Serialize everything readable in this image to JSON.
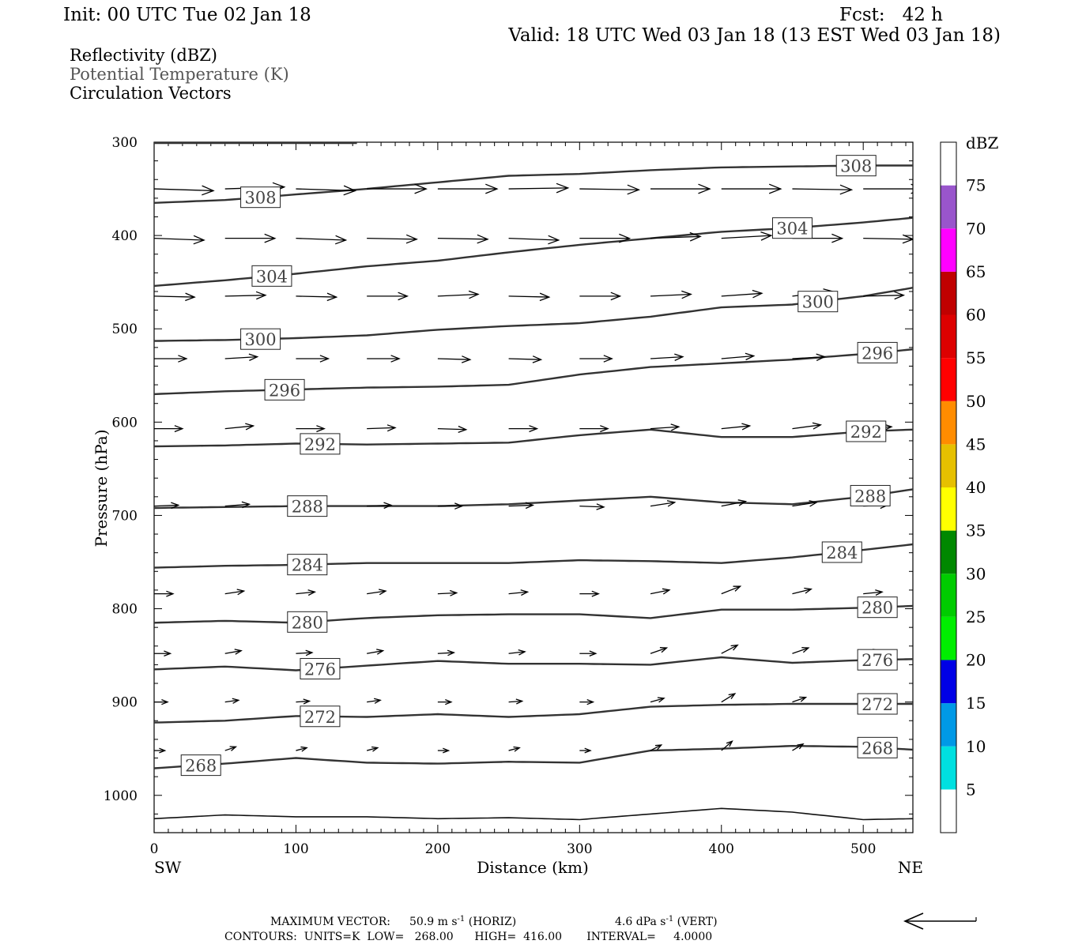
{
  "header": {
    "init": "Init: 00 UTC Tue 02 Jan 18",
    "fcst": "Fcst:   42 h",
    "valid": "Valid: 18 UTC Wed 03 Jan 18 (13 EST Wed 03 Jan 18)"
  },
  "fields": {
    "reflectivity": "Reflectivity (dBZ)",
    "theta": "Potential Temperature (K)",
    "vectors": "Circulation Vectors"
  },
  "colors": {
    "theta_label": "#555555",
    "contour": "#333333"
  },
  "chart_data": {
    "type": "line",
    "xlabel": "Distance (km)",
    "ylabel": "Pressure (hPa)",
    "xlim": [
      0,
      535
    ],
    "ylim": [
      1040,
      300
    ],
    "x_ticks": [
      0,
      100,
      200,
      300,
      400,
      500
    ],
    "y_ticks": [
      300,
      400,
      500,
      600,
      700,
      800,
      900,
      1000
    ],
    "x_endpoints": {
      "left": "SW",
      "right": "NE"
    },
    "contour_x": [
      0,
      50,
      100,
      150,
      200,
      250,
      300,
      350,
      400,
      450,
      500,
      535
    ],
    "contours": [
      {
        "label": "308",
        "p": [
          365,
          362,
          356,
          350,
          343,
          336,
          334,
          330,
          327,
          326,
          325,
          325
        ],
        "labels_at": [
          75,
          495
        ]
      },
      {
        "label": "304",
        "p": [
          454,
          448,
          441,
          433,
          427,
          418,
          410,
          403,
          396,
          392,
          386,
          381
        ],
        "labels_at": [
          83,
          450
        ]
      },
      {
        "label": "300",
        "p": [
          513,
          512,
          510,
          507,
          501,
          497,
          494,
          487,
          477,
          474,
          465,
          456
        ],
        "labels_at": [
          75,
          468
        ]
      },
      {
        "label": "296",
        "p": [
          570,
          567,
          565,
          563,
          562,
          560,
          549,
          541,
          537,
          533,
          527,
          522
        ],
        "labels_at": [
          92,
          510
        ]
      },
      {
        "label": "292",
        "p": [
          626,
          625,
          623,
          624,
          623,
          622,
          614,
          608,
          616,
          616,
          610,
          608
        ],
        "labels_at": [
          117,
          502
        ]
      },
      {
        "label": "288",
        "p": [
          692,
          691,
          690,
          690,
          690,
          688,
          684,
          680,
          686,
          688,
          680,
          672
        ],
        "labels_at": [
          108,
          505
        ]
      },
      {
        "label": "284",
        "p": [
          756,
          754,
          753,
          751,
          751,
          751,
          748,
          749,
          751,
          745,
          737,
          731
        ],
        "labels_at": [
          108,
          485
        ]
      },
      {
        "label": "280",
        "p": [
          815,
          813,
          815,
          810,
          807,
          806,
          806,
          810,
          801,
          801,
          799,
          797
        ],
        "labels_at": [
          108,
          510
        ]
      },
      {
        "label": "276",
        "p": [
          865,
          862,
          866,
          861,
          856,
          859,
          859,
          860,
          852,
          858,
          855,
          854
        ],
        "labels_at": [
          117,
          510
        ]
      },
      {
        "label": "272",
        "p": [
          922,
          920,
          915,
          916,
          913,
          916,
          913,
          905,
          903,
          902,
          902,
          902
        ],
        "labels_at": [
          117,
          510
        ]
      },
      {
        "label": "268",
        "p": [
          971,
          966,
          960,
          965,
          966,
          964,
          965,
          952,
          950,
          947,
          948,
          951
        ],
        "labels_at": [
          33,
          510
        ]
      }
    ],
    "surface": {
      "p": [
        1025,
        1021,
        1023,
        1023,
        1025,
        1024,
        1026,
        1020,
        1014,
        1018,
        1026,
        1025
      ]
    },
    "vectors": {
      "x": [
        0,
        50,
        100,
        150,
        200,
        250,
        300,
        350,
        400,
        450,
        500
      ],
      "rows": [
        {
          "p": 350,
          "len": 44,
          "dp": [
            2,
            -2,
            2,
            0,
            0,
            -1,
            1,
            0,
            0,
            1,
            0
          ]
        },
        {
          "p": 403,
          "len": 37,
          "dp": [
            2,
            0,
            2,
            1,
            1,
            2,
            0,
            -2,
            -3,
            0,
            1
          ]
        },
        {
          "p": 465,
          "len": 30,
          "dp": [
            1,
            -1,
            1,
            0,
            -2,
            1,
            0,
            -2,
            -3,
            -5,
            -1
          ]
        },
        {
          "p": 532,
          "len": 24,
          "dp": [
            0,
            -2,
            0,
            0,
            1,
            1,
            0,
            -2,
            -3,
            -2,
            -3
          ]
        },
        {
          "p": 607,
          "len": 21,
          "dp": [
            0,
            -3,
            0,
            -1,
            1,
            0,
            0,
            -2,
            -3,
            -4,
            -2
          ]
        },
        {
          "p": 690,
          "len": 18,
          "dp": [
            -1,
            -2,
            -1,
            -1,
            0,
            -1,
            1,
            -4,
            -5,
            -4,
            -1
          ]
        },
        {
          "p": 784,
          "len": 14,
          "dp": [
            0,
            -3,
            -2,
            -3,
            -1,
            -2,
            0,
            -4,
            -8,
            -5,
            -2
          ]
        },
        {
          "p": 848,
          "len": 12,
          "dp": [
            0,
            -3,
            -1,
            -3,
            -1,
            -2,
            0,
            -6,
            -9,
            -6,
            -3
          ]
        },
        {
          "p": 900,
          "len": 10,
          "dp": [
            0,
            -2,
            -1,
            -2,
            0,
            -1,
            0,
            -4,
            -9,
            -5,
            -1
          ]
        },
        {
          "p": 952,
          "len": 8,
          "dp": [
            0,
            -4,
            -3,
            -3,
            0,
            -3,
            0,
            -6,
            -10,
            -7,
            -4
          ]
        }
      ]
    },
    "colorbar": {
      "title": "dBZ",
      "labels": [
        "5",
        "10",
        "15",
        "20",
        "25",
        "30",
        "35",
        "40",
        "45",
        "50",
        "55",
        "60",
        "65",
        "70",
        "75"
      ],
      "colors": [
        "#ffffff",
        "#00e0e0",
        "#0099e6",
        "#0000e6",
        "#00ee00",
        "#00cc00",
        "#008800",
        "#ffff00",
        "#e6c000",
        "#ff8c00",
        "#ff0000",
        "#dd0000",
        "#c00000",
        "#ff00ff",
        "#9955cc",
        "#ffffff"
      ]
    }
  },
  "footer": {
    "max_vector_label": "MAXIMUM VECTOR:",
    "horiz": "50.9 m s",
    "horiz_exp": "-1",
    "horiz_tag": "(HORIZ)",
    "vert": "4.6 dPa s",
    "vert_exp": "-1",
    "vert_tag": "(VERT)",
    "contours": "CONTOURS:  UNITS=K  LOW=   268.00      HIGH=  416.00       INTERVAL=     4.0000"
  }
}
